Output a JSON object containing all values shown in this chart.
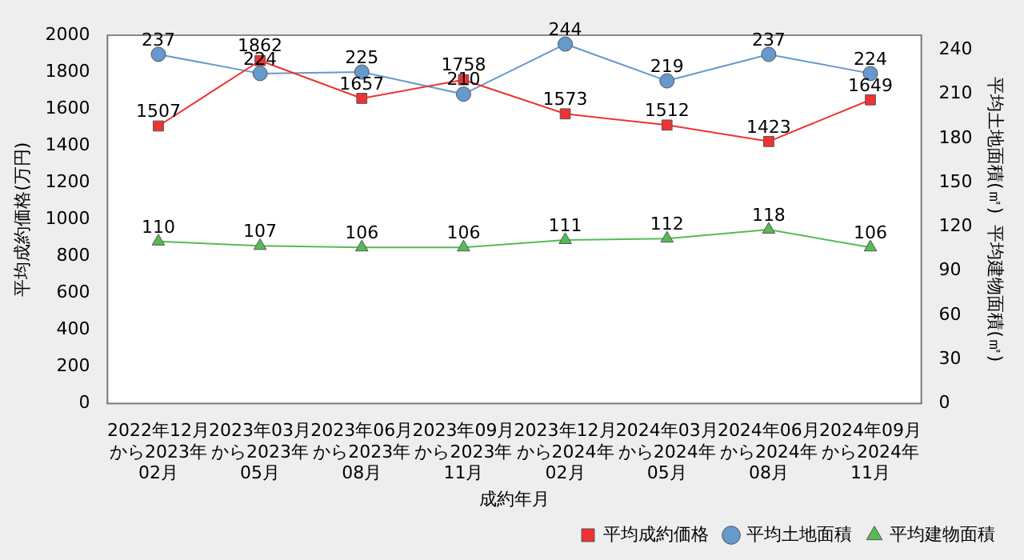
{
  "chart_data": {
    "type": "line",
    "xlabel": "成約年月",
    "ylabel": "平均成約価格(万円)",
    "y2label": "平均土地面積(㎡)  平均建物面積(㎡)",
    "categories": [
      "2022年12月から2023年02月",
      "2023年03月から2023年05月",
      "2023年06月から2023年08月",
      "2023年09月から2023年11月",
      "2023年12月から2024年02月",
      "2024年03月から2024年05月",
      "2024年06月から2024年08月",
      "2024年09月から2024年11月"
    ],
    "series": [
      {
        "name": "平均成約価格",
        "color": "#ee3333",
        "marker": "square",
        "values": [
          1507,
          1862,
          1657,
          1758,
          1573,
          1512,
          1423,
          1649
        ]
      },
      {
        "name": "平均土地面積",
        "color": "#6699cc",
        "marker": "circle",
        "axis": "y2",
        "values": [
          237,
          224,
          225,
          210,
          244,
          219,
          237,
          224
        ]
      },
      {
        "name": "平均建物面積",
        "color": "#55bb55",
        "marker": "triangle",
        "axis": "y2",
        "values": [
          110,
          107,
          106,
          106,
          111,
          112,
          118,
          106
        ]
      }
    ],
    "ylim": [
      0,
      2000
    ],
    "yticks": [
      0,
      200,
      400,
      600,
      800,
      1000,
      1200,
      1400,
      1600,
      1800,
      2000
    ],
    "y2lim": [
      0,
      250
    ],
    "y2ticks": [
      0,
      30,
      60,
      90,
      120,
      150,
      180,
      210,
      240
    ],
    "grid": false,
    "legend": "bottom right",
    "data_labels": true,
    "line_style": "solid"
  }
}
